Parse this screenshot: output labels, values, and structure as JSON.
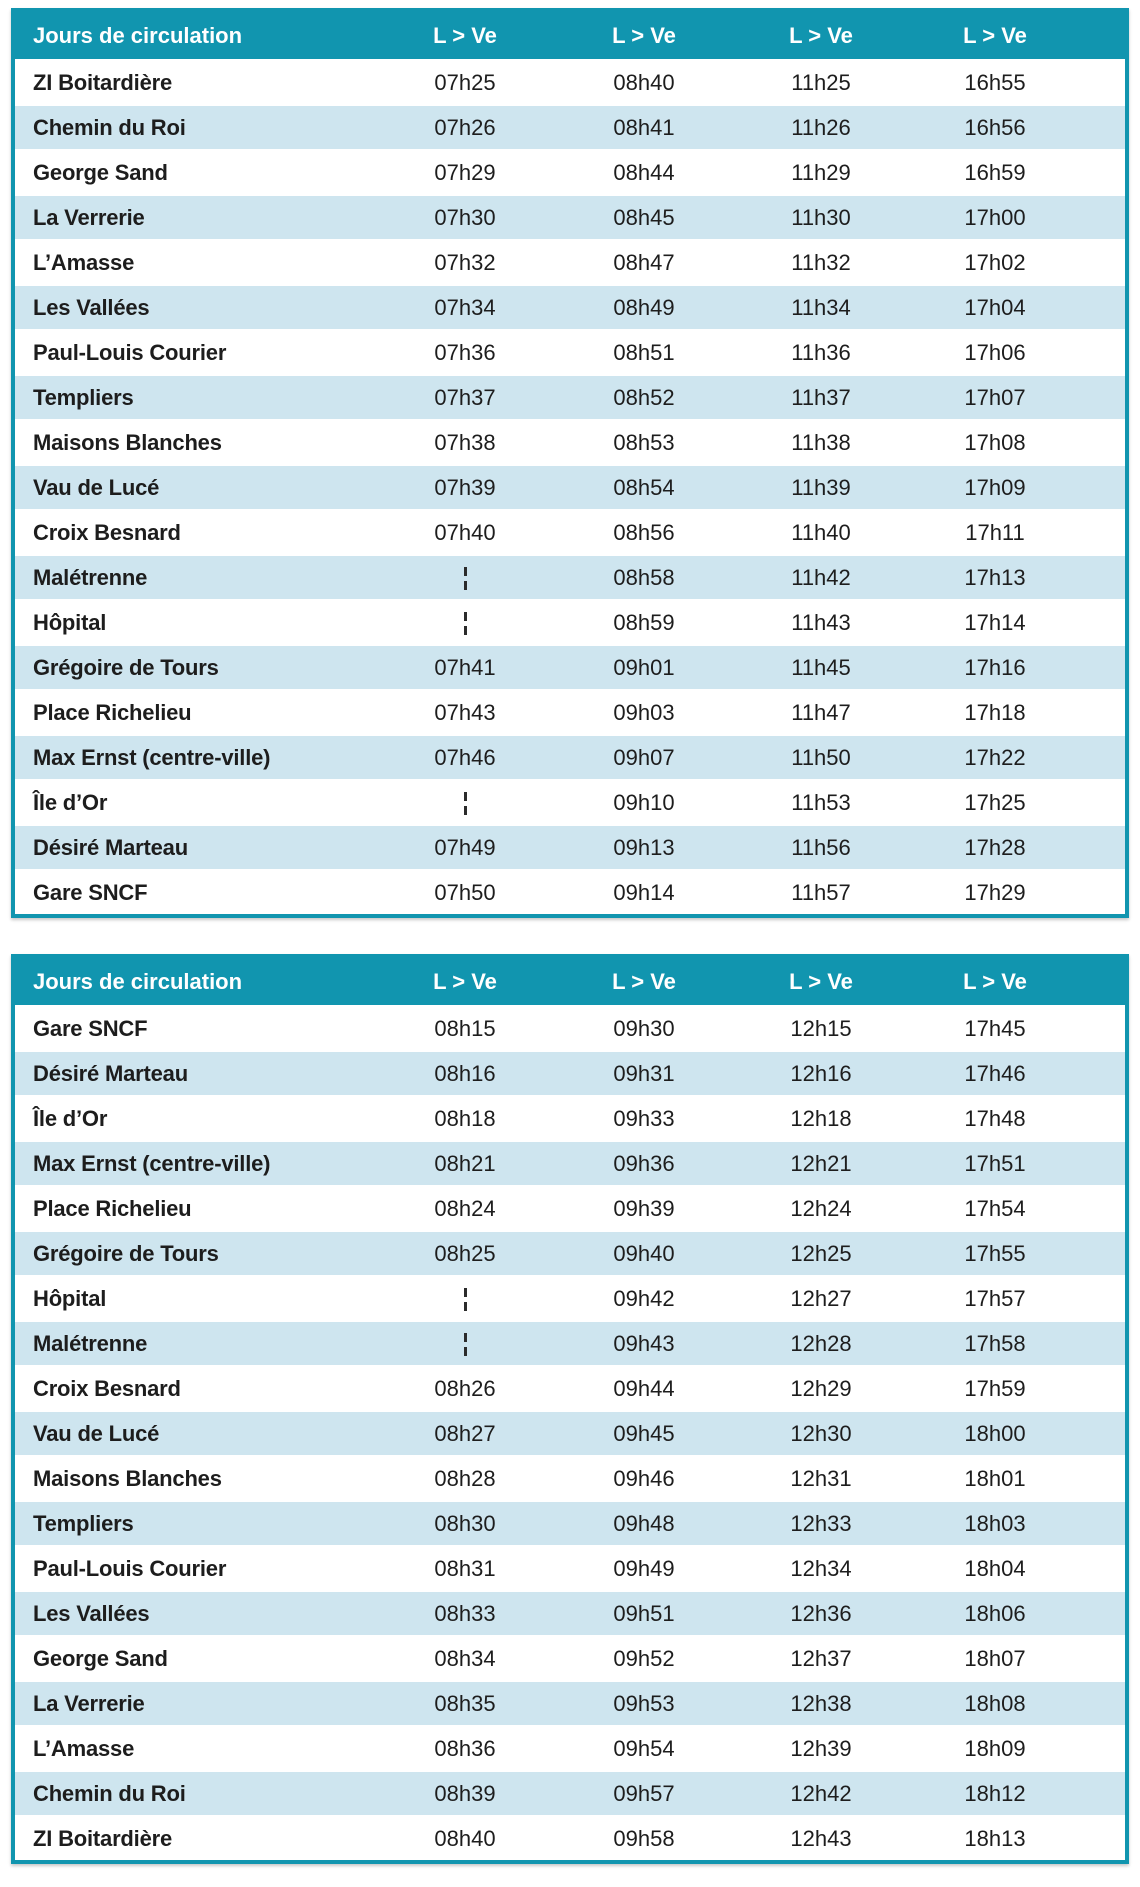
{
  "colors": {
    "teal": "#1195af",
    "stripe": "#cee5ef",
    "text": "#1d1d1d",
    "header_text": "#ffffff"
  },
  "skip_symbol": "¦",
  "tables": [
    {
      "header": {
        "label": "Jours de circulation",
        "columns": [
          "L > Ve",
          "L > Ve",
          "L > Ve",
          "L > Ve"
        ]
      },
      "rows": [
        {
          "stop": "ZI Boitardière",
          "times": [
            "07h25",
            "08h40",
            "11h25",
            "16h55"
          ]
        },
        {
          "stop": "Chemin du Roi",
          "times": [
            "07h26",
            "08h41",
            "11h26",
            "16h56"
          ]
        },
        {
          "stop": "George Sand",
          "times": [
            "07h29",
            "08h44",
            "11h29",
            "16h59"
          ]
        },
        {
          "stop": "La Verrerie",
          "times": [
            "07h30",
            "08h45",
            "11h30",
            "17h00"
          ]
        },
        {
          "stop": "L’Amasse",
          "times": [
            "07h32",
            "08h47",
            "11h32",
            "17h02"
          ]
        },
        {
          "stop": "Les Vallées",
          "times": [
            "07h34",
            "08h49",
            "11h34",
            "17h04"
          ]
        },
        {
          "stop": "Paul-Louis Courier",
          "times": [
            "07h36",
            "08h51",
            "11h36",
            "17h06"
          ]
        },
        {
          "stop": "Templiers",
          "times": [
            "07h37",
            "08h52",
            "11h37",
            "17h07"
          ]
        },
        {
          "stop": "Maisons Blanches",
          "times": [
            "07h38",
            "08h53",
            "11h38",
            "17h08"
          ]
        },
        {
          "stop": "Vau de Lucé",
          "times": [
            "07h39",
            "08h54",
            "11h39",
            "17h09"
          ]
        },
        {
          "stop": "Croix Besnard",
          "times": [
            "07h40",
            "08h56",
            "11h40",
            "17h11"
          ]
        },
        {
          "stop": "Malétrenne",
          "times": [
            "¦",
            "08h58",
            "11h42",
            "17h13"
          ]
        },
        {
          "stop": "Hôpital",
          "times": [
            "¦",
            "08h59",
            "11h43",
            "17h14"
          ]
        },
        {
          "stop": "Grégoire de Tours",
          "times": [
            "07h41",
            "09h01",
            "11h45",
            "17h16"
          ]
        },
        {
          "stop": "Place Richelieu",
          "times": [
            "07h43",
            "09h03",
            "11h47",
            "17h18"
          ]
        },
        {
          "stop": "Max Ernst (centre-ville)",
          "times": [
            "07h46",
            "09h07",
            "11h50",
            "17h22"
          ]
        },
        {
          "stop": "Île d’Or",
          "times": [
            "¦",
            "09h10",
            "11h53",
            "17h25"
          ]
        },
        {
          "stop": "Désiré Marteau",
          "times": [
            "07h49",
            "09h13",
            "11h56",
            "17h28"
          ]
        },
        {
          "stop": "Gare SNCF",
          "times": [
            "07h50",
            "09h14",
            "11h57",
            "17h29"
          ]
        }
      ]
    },
    {
      "header": {
        "label": "Jours de circulation",
        "columns": [
          "L > Ve",
          "L > Ve",
          "L > Ve",
          "L > Ve"
        ]
      },
      "rows": [
        {
          "stop": "Gare SNCF",
          "times": [
            "08h15",
            "09h30",
            "12h15",
            "17h45"
          ]
        },
        {
          "stop": "Désiré Marteau",
          "times": [
            "08h16",
            "09h31",
            "12h16",
            "17h46"
          ]
        },
        {
          "stop": "Île d’Or",
          "times": [
            "08h18",
            "09h33",
            "12h18",
            "17h48"
          ]
        },
        {
          "stop": "Max Ernst (centre-ville)",
          "times": [
            "08h21",
            "09h36",
            "12h21",
            "17h51"
          ]
        },
        {
          "stop": "Place Richelieu",
          "times": [
            "08h24",
            "09h39",
            "12h24",
            "17h54"
          ]
        },
        {
          "stop": "Grégoire de Tours",
          "times": [
            "08h25",
            "09h40",
            "12h25",
            "17h55"
          ]
        },
        {
          "stop": "Hôpital",
          "times": [
            "¦",
            "09h42",
            "12h27",
            "17h57"
          ]
        },
        {
          "stop": "Malétrenne",
          "times": [
            "¦",
            "09h43",
            "12h28",
            "17h58"
          ]
        },
        {
          "stop": "Croix Besnard",
          "times": [
            "08h26",
            "09h44",
            "12h29",
            "17h59"
          ]
        },
        {
          "stop": "Vau de Lucé",
          "times": [
            "08h27",
            "09h45",
            "12h30",
            "18h00"
          ]
        },
        {
          "stop": "Maisons Blanches",
          "times": [
            "08h28",
            "09h46",
            "12h31",
            "18h01"
          ]
        },
        {
          "stop": "Templiers",
          "times": [
            "08h30",
            "09h48",
            "12h33",
            "18h03"
          ]
        },
        {
          "stop": "Paul-Louis Courier",
          "times": [
            "08h31",
            "09h49",
            "12h34",
            "18h04"
          ]
        },
        {
          "stop": "Les Vallées",
          "times": [
            "08h33",
            "09h51",
            "12h36",
            "18h06"
          ]
        },
        {
          "stop": "George Sand",
          "times": [
            "08h34",
            "09h52",
            "12h37",
            "18h07"
          ]
        },
        {
          "stop": "La Verrerie",
          "times": [
            "08h35",
            "09h53",
            "12h38",
            "18h08"
          ]
        },
        {
          "stop": "L’Amasse",
          "times": [
            "08h36",
            "09h54",
            "12h39",
            "18h09"
          ]
        },
        {
          "stop": "Chemin du Roi",
          "times": [
            "08h39",
            "09h57",
            "12h42",
            "18h12"
          ]
        },
        {
          "stop": "ZI Boitardière",
          "times": [
            "08h40",
            "09h58",
            "12h43",
            "18h13"
          ]
        }
      ]
    }
  ]
}
